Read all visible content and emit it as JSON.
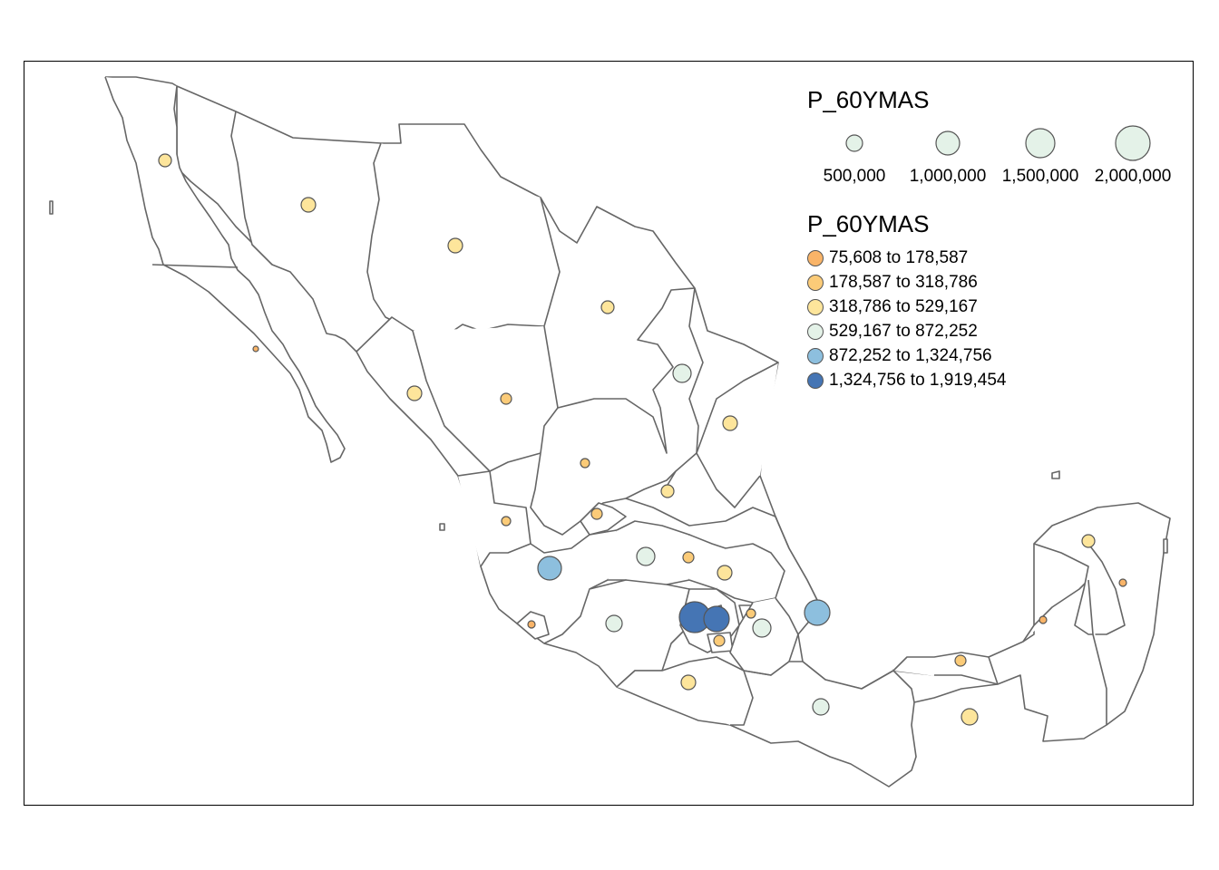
{
  "legend_size": {
    "title": "P_60YMAS",
    "items": [
      {
        "label": "500,000",
        "value": 500000
      },
      {
        "label": "1,000,000",
        "value": 1000000
      },
      {
        "label": "1,500,000",
        "value": 1500000
      },
      {
        "label": "2,000,000",
        "value": 2000000
      }
    ]
  },
  "legend_classes": {
    "title": "P_60YMAS",
    "items": [
      {
        "label": "75,608 to 178,587",
        "color": "#f9b468"
      },
      {
        "label": "178,587 to 318,786",
        "color": "#fbcb78"
      },
      {
        "label": "318,786 to 529,167",
        "color": "#fde59b"
      },
      {
        "label": "529,167 to 872,252",
        "color": "#e4f2e8"
      },
      {
        "label": "872,252 to 1,324,756",
        "color": "#8dbfde"
      },
      {
        "label": "1,324,756 to 1,919,454",
        "color": "#4575b4"
      }
    ]
  },
  "colors": {
    "boundary": "#666666",
    "frame": "#000000",
    "symbol_border": "#555555"
  }
}
